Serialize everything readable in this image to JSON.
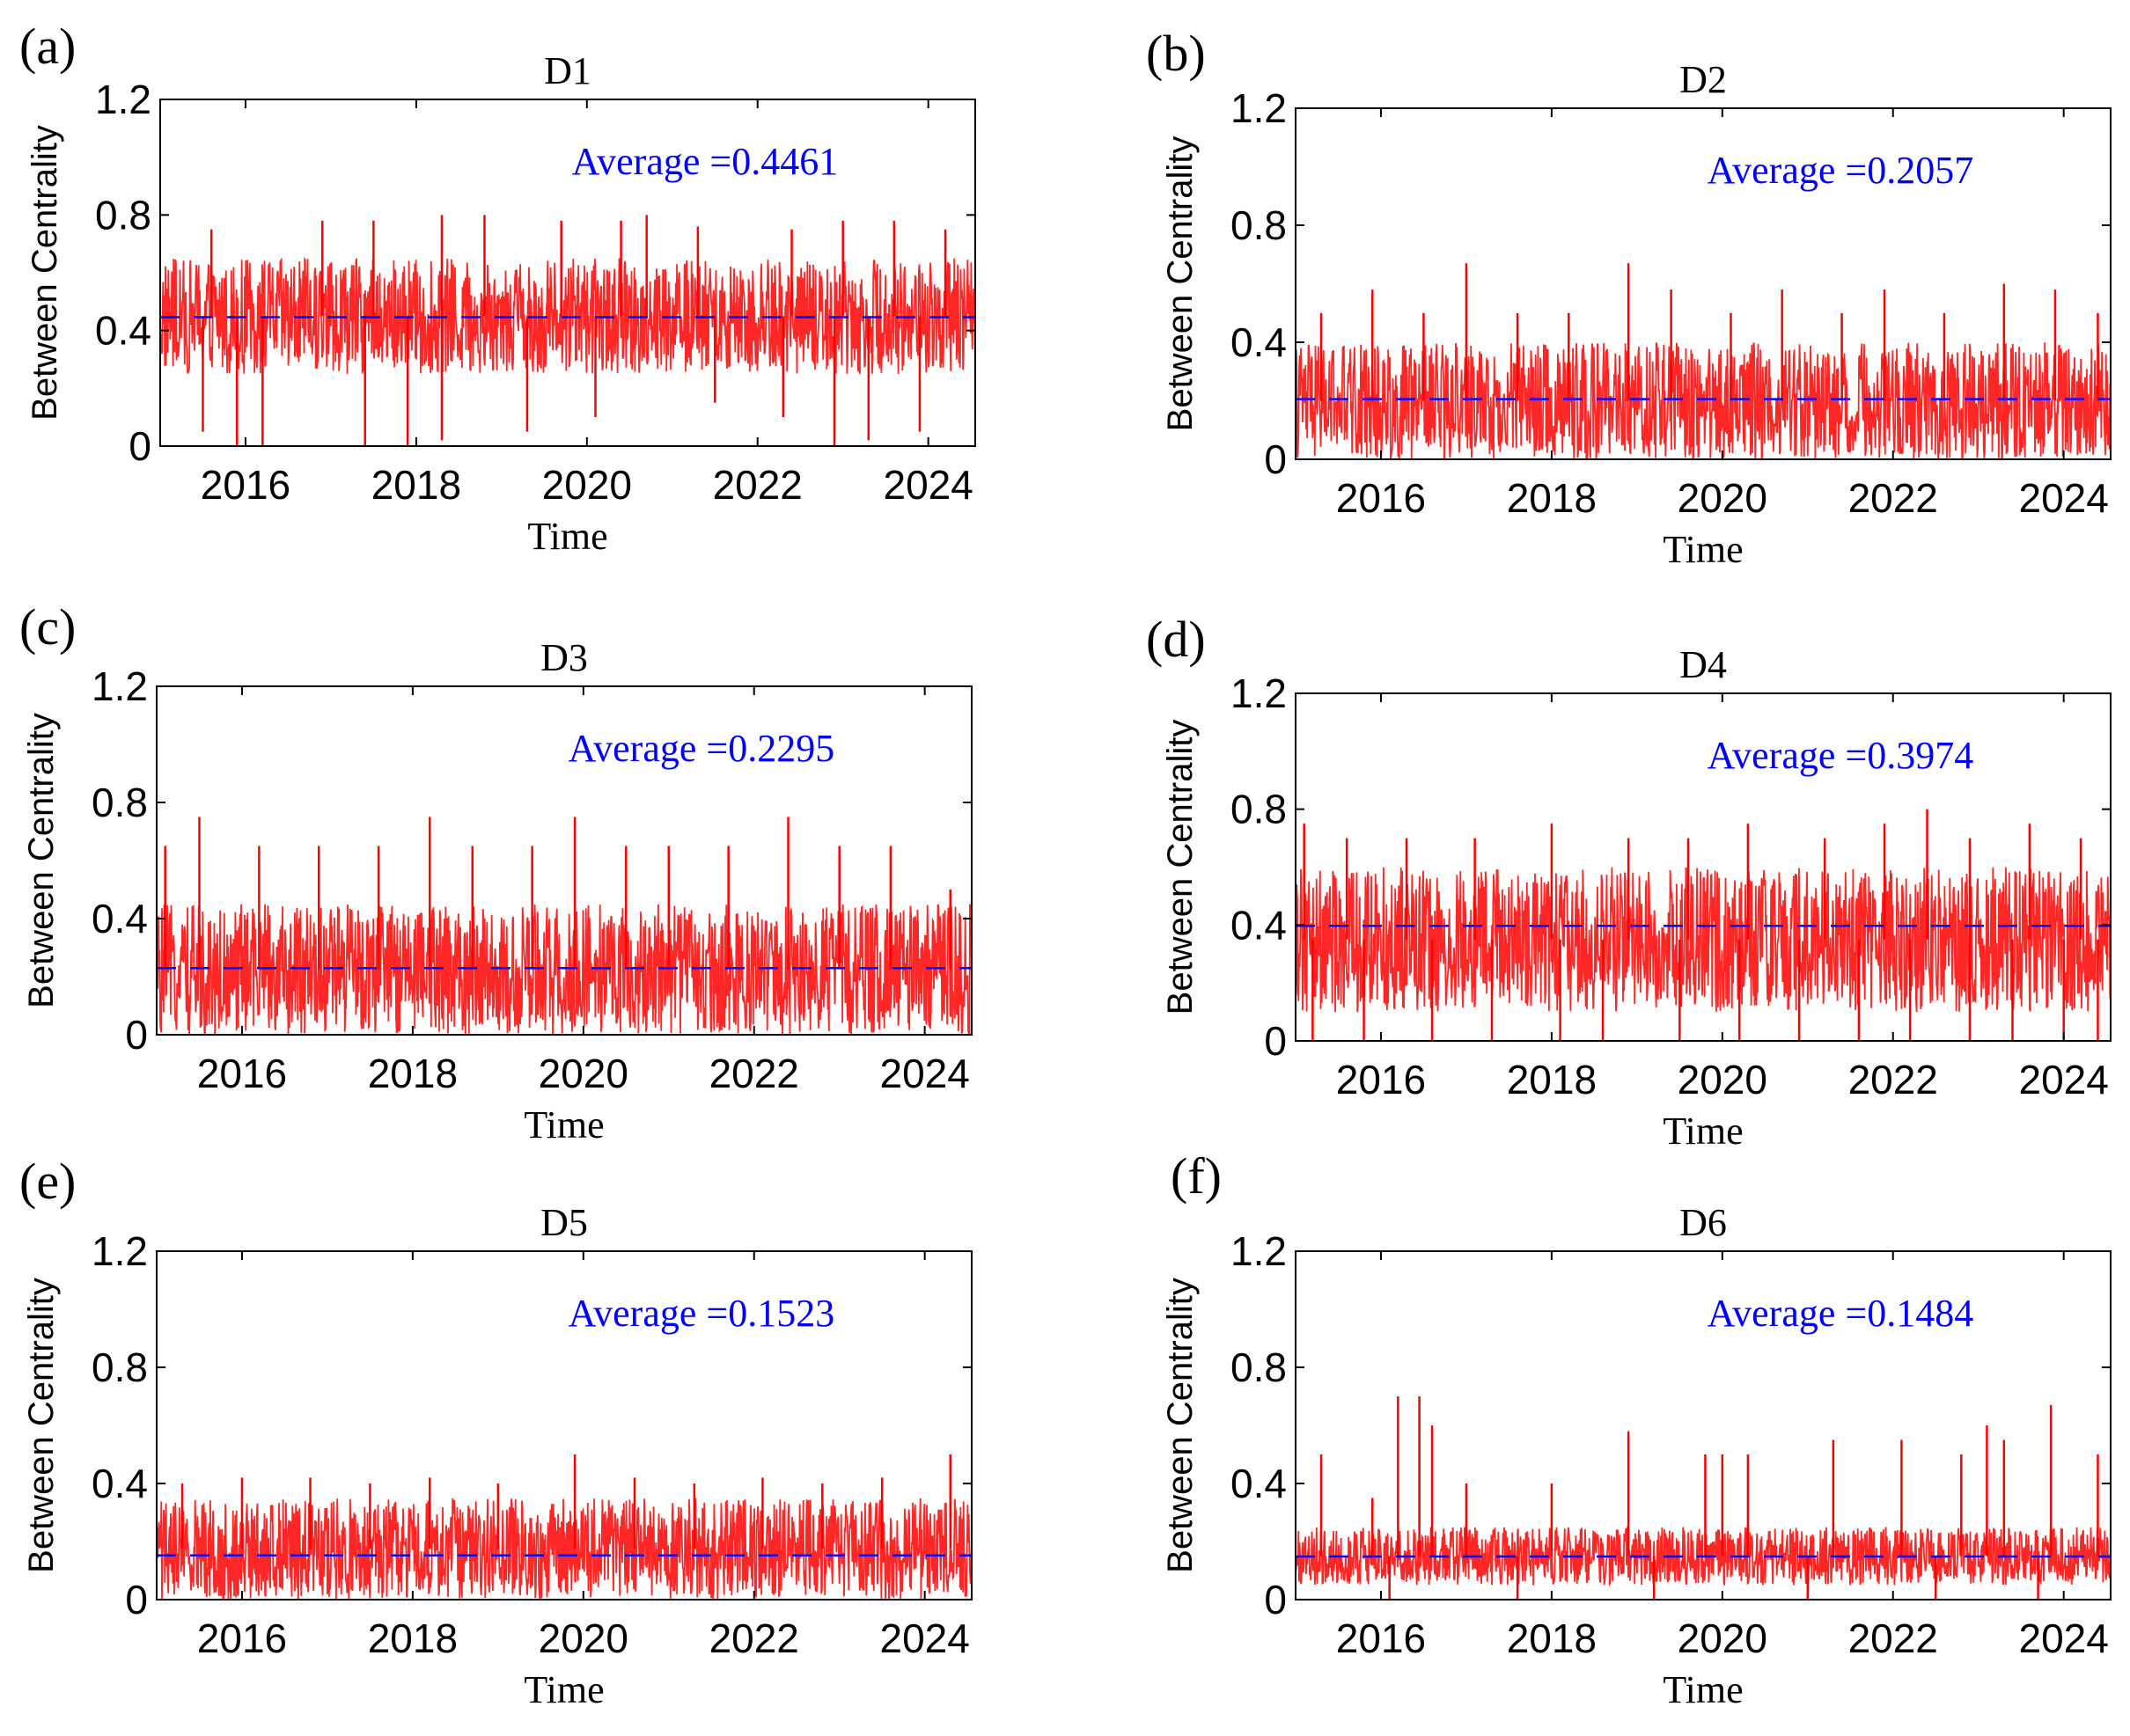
{
  "colors": {
    "series": "#ff0000",
    "average": "#0000ff",
    "axes": "#000000"
  },
  "chart_data": [
    {
      "type": "line",
      "panel": "(a)",
      "title": "D1",
      "xlabel": "Time",
      "ylabel": "Between Centrality",
      "xlim": [
        2015.0,
        2024.55
      ],
      "ylim": [
        0,
        1.2
      ],
      "xticks": [
        "2016",
        "2018",
        "2020",
        "2022",
        "2024"
      ],
      "yticks": [
        "0",
        "0.4",
        "0.8",
        "1.2"
      ],
      "average": 0.4461,
      "average_label": "Average =0.4461",
      "series_summary": {
        "typical_low": 0.25,
        "typical_high": 0.65,
        "min": 0,
        "max": 0.8
      },
      "spikes_up": [
        [
          2015.6,
          0.75
        ],
        [
          2016.9,
          0.78
        ],
        [
          2017.5,
          0.78
        ],
        [
          2018.3,
          0.8
        ],
        [
          2018.8,
          0.8
        ],
        [
          2019.7,
          0.78
        ],
        [
          2020.4,
          0.78
        ],
        [
          2020.7,
          0.8
        ],
        [
          2021.3,
          0.76
        ],
        [
          2022.4,
          0.75
        ],
        [
          2023.0,
          0.78
        ],
        [
          2023.6,
          0.78
        ],
        [
          2024.2,
          0.75
        ]
      ],
      "spikes_down": [
        [
          2015.5,
          0.05
        ],
        [
          2015.9,
          0.0
        ],
        [
          2016.2,
          0.0
        ],
        [
          2017.4,
          0.0
        ],
        [
          2017.9,
          0.0
        ],
        [
          2018.3,
          0.02
        ],
        [
          2019.3,
          0.05
        ],
        [
          2020.1,
          0.1
        ],
        [
          2021.5,
          0.15
        ],
        [
          2022.3,
          0.1
        ],
        [
          2022.9,
          0.0
        ],
        [
          2023.3,
          0.02
        ],
        [
          2023.9,
          0.05
        ]
      ]
    },
    {
      "type": "line",
      "panel": "(b)",
      "title": "D2",
      "xlabel": "Time",
      "ylabel": "Between Centrality",
      "xlim": [
        2015.0,
        2024.55
      ],
      "ylim": [
        0,
        1.2
      ],
      "xticks": [
        "2016",
        "2018",
        "2020",
        "2022",
        "2024"
      ],
      "yticks": [
        "0",
        "0.4",
        "0.8",
        "1.2"
      ],
      "average": 0.2057,
      "average_label": "Average =0.2057",
      "series_summary": {
        "typical_low": 0.0,
        "typical_high": 0.4,
        "min": 0,
        "max": 0.67
      },
      "spikes_up": [
        [
          2015.3,
          0.5
        ],
        [
          2015.9,
          0.58
        ],
        [
          2016.5,
          0.5
        ],
        [
          2017.0,
          0.67
        ],
        [
          2017.6,
          0.5
        ],
        [
          2018.2,
          0.5
        ],
        [
          2018.9,
          0.67
        ],
        [
          2019.4,
          0.58
        ],
        [
          2020.1,
          0.5
        ],
        [
          2020.7,
          0.58
        ],
        [
          2021.4,
          0.5
        ],
        [
          2021.9,
          0.58
        ],
        [
          2022.6,
          0.5
        ],
        [
          2023.3,
          0.6
        ],
        [
          2023.9,
          0.58
        ],
        [
          2024.4,
          0.5
        ]
      ],
      "spikes_down": []
    },
    {
      "type": "line",
      "panel": "(c)",
      "title": "D3",
      "xlabel": "Time",
      "ylabel": "Between Centrality",
      "xlim": [
        2015.0,
        2024.55
      ],
      "ylim": [
        0,
        1.2
      ],
      "xticks": [
        "2016",
        "2018",
        "2020",
        "2022",
        "2024"
      ],
      "yticks": [
        "0",
        "0.4",
        "0.8",
        "1.2"
      ],
      "average": 0.2295,
      "average_label": "Average =0.2295",
      "series_summary": {
        "typical_low": 0.0,
        "typical_high": 0.45,
        "min": 0,
        "max": 0.75
      },
      "spikes_up": [
        [
          2015.1,
          0.65
        ],
        [
          2015.5,
          0.75
        ],
        [
          2016.2,
          0.65
        ],
        [
          2016.9,
          0.65
        ],
        [
          2017.6,
          0.65
        ],
        [
          2018.2,
          0.75
        ],
        [
          2018.7,
          0.65
        ],
        [
          2019.4,
          0.65
        ],
        [
          2019.9,
          0.75
        ],
        [
          2020.5,
          0.65
        ],
        [
          2021.0,
          0.65
        ],
        [
          2021.7,
          0.65
        ],
        [
          2022.4,
          0.75
        ],
        [
          2023.0,
          0.65
        ],
        [
          2023.6,
          0.65
        ],
        [
          2024.3,
          0.5
        ]
      ],
      "spikes_down": []
    },
    {
      "type": "line",
      "panel": "(d)",
      "title": "D4",
      "xlabel": "Time",
      "ylabel": "Between Centrality",
      "xlim": [
        2015.0,
        2024.55
      ],
      "ylim": [
        0,
        1.2
      ],
      "xticks": [
        "2016",
        "2018",
        "2020",
        "2022",
        "2024"
      ],
      "yticks": [
        "0",
        "0.4",
        "0.8",
        "1.2"
      ],
      "average": 0.3974,
      "average_label": "Average =0.3974",
      "series_summary": {
        "typical_low": 0.1,
        "typical_high": 0.6,
        "min": 0,
        "max": 0.8
      },
      "spikes_up": [
        [
          2015.1,
          0.75
        ],
        [
          2015.6,
          0.7
        ],
        [
          2016.3,
          0.7
        ],
        [
          2017.1,
          0.7
        ],
        [
          2018.0,
          0.75
        ],
        [
          2018.9,
          0.7
        ],
        [
          2019.6,
          0.7
        ],
        [
          2020.3,
          0.75
        ],
        [
          2021.2,
          0.7
        ],
        [
          2021.9,
          0.75
        ],
        [
          2022.4,
          0.8
        ],
        [
          2022.9,
          0.7
        ],
        [
          2023.6,
          0.75
        ],
        [
          2024.2,
          0.7
        ]
      ],
      "spikes_down": [
        [
          2015.2,
          0.0
        ],
        [
          2015.8,
          0.0
        ],
        [
          2016.6,
          0.0
        ],
        [
          2017.3,
          0.0
        ],
        [
          2018.1,
          0.0
        ],
        [
          2018.6,
          0.0
        ],
        [
          2019.5,
          0.0
        ],
        [
          2020.2,
          0.0
        ],
        [
          2020.9,
          0.0
        ],
        [
          2021.6,
          0.0
        ],
        [
          2022.2,
          0.0
        ],
        [
          2022.9,
          0.0
        ],
        [
          2023.4,
          0.0
        ],
        [
          2024.0,
          0.0
        ],
        [
          2024.4,
          0.0
        ]
      ]
    },
    {
      "type": "line",
      "panel": "(e)",
      "title": "D5",
      "xlabel": "Time",
      "ylabel": "Between Centrality",
      "xlim": [
        2015.0,
        2024.55
      ],
      "ylim": [
        0,
        1.2
      ],
      "xticks": [
        "2016",
        "2018",
        "2020",
        "2022",
        "2024"
      ],
      "yticks": [
        "0",
        "0.4",
        "0.8",
        "1.2"
      ],
      "average": 0.1523,
      "average_label": "Average =0.1523",
      "series_summary": {
        "typical_low": 0.0,
        "typical_high": 0.35,
        "min": 0,
        "max": 0.5
      },
      "spikes_up": [
        [
          2015.3,
          0.4
        ],
        [
          2016.0,
          0.42
        ],
        [
          2016.8,
          0.42
        ],
        [
          2017.5,
          0.4
        ],
        [
          2018.2,
          0.42
        ],
        [
          2019.0,
          0.4
        ],
        [
          2019.9,
          0.5
        ],
        [
          2020.6,
          0.42
        ],
        [
          2021.3,
          0.4
        ],
        [
          2022.1,
          0.42
        ],
        [
          2022.8,
          0.4
        ],
        [
          2023.5,
          0.42
        ],
        [
          2024.3,
          0.5
        ]
      ],
      "spikes_down": []
    },
    {
      "type": "line",
      "panel": "(f)",
      "title": "D6",
      "xlabel": "Time",
      "ylabel": "Between Centrality",
      "xlim": [
        2015.0,
        2024.55
      ],
      "ylim": [
        0,
        1.2
      ],
      "xticks": [
        "2016",
        "2018",
        "2020",
        "2022",
        "2024"
      ],
      "yticks": [
        "0",
        "0.4",
        "0.8",
        "1.2"
      ],
      "average": 0.1484,
      "average_label": "Average =0.1484",
      "series_summary": {
        "typical_low": 0.05,
        "typical_high": 0.25,
        "min": 0,
        "max": 0.7
      },
      "spikes_up": [
        [
          2015.3,
          0.5
        ],
        [
          2015.9,
          0.35
        ],
        [
          2016.2,
          0.7
        ],
        [
          2016.45,
          0.7
        ],
        [
          2016.6,
          0.6
        ],
        [
          2017.0,
          0.4
        ],
        [
          2018.0,
          0.4
        ],
        [
          2018.9,
          0.58
        ],
        [
          2019.8,
          0.5
        ],
        [
          2020.0,
          0.5
        ],
        [
          2020.3,
          0.5
        ],
        [
          2021.3,
          0.55
        ],
        [
          2022.1,
          0.55
        ],
        [
          2022.8,
          0.5
        ],
        [
          2023.1,
          0.6
        ],
        [
          2023.3,
          0.55
        ],
        [
          2023.85,
          0.67
        ],
        [
          2024.4,
          0.5
        ]
      ],
      "spikes_down": [
        [
          2016.1,
          0.0
        ],
        [
          2017.6,
          0.0
        ],
        [
          2019.2,
          0.0
        ],
        [
          2021.0,
          0.0
        ],
        [
          2022.5,
          0.0
        ],
        [
          2023.7,
          0.0
        ]
      ]
    }
  ]
}
